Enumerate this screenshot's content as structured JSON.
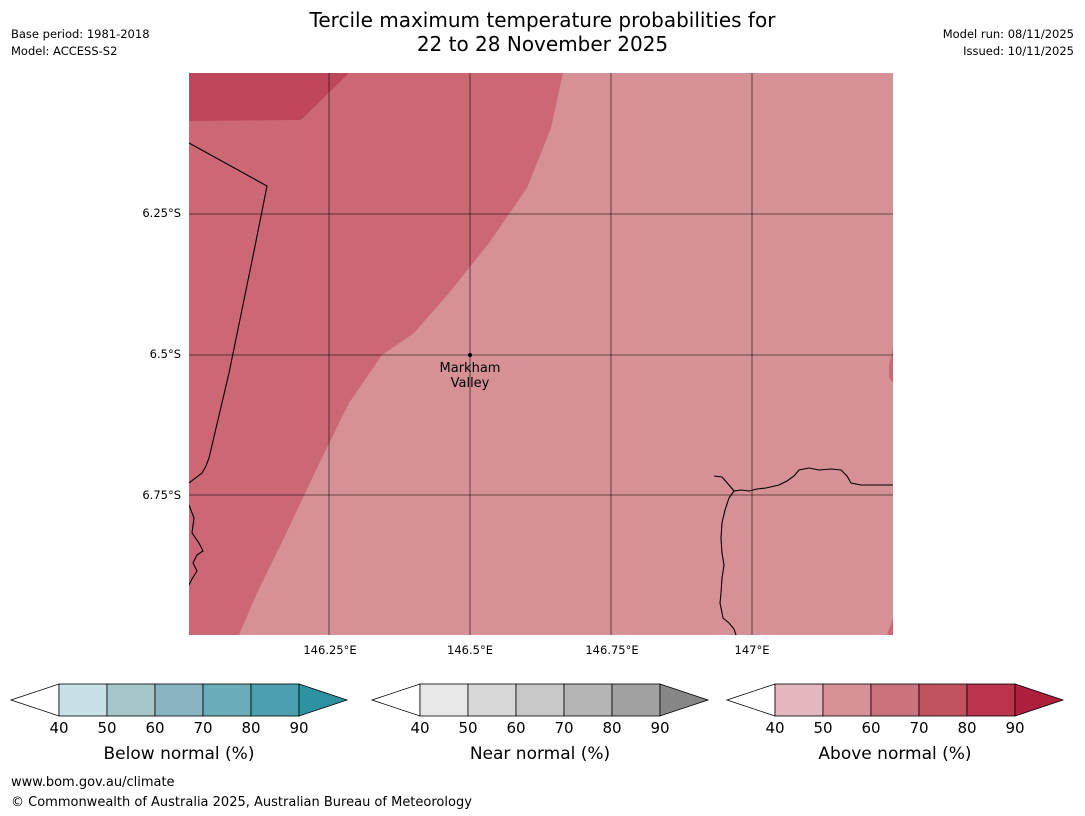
{
  "header": {
    "title_line1": "Tercile maximum temperature probabilities for",
    "title_line2": "22 to 28 November 2025",
    "base_period": "Base period: 1981-2018",
    "model": "Model: ACCESS-S2",
    "model_run": "Model run: 08/11/2025",
    "issued": "Issued: 10/11/2025"
  },
  "map": {
    "lat_labels": [
      "6.25°S",
      "6.5°S",
      "6.75°S"
    ],
    "lon_labels": [
      "146.25°E",
      "146.5°E",
      "146.75°E",
      "147°E"
    ],
    "place_name_line1": "Markham",
    "place_name_line2": "Valley",
    "fill_colors": {
      "above_60_70": "#cb6873",
      "above_50_60": "#d69197",
      "above_80_90": "#c0465a"
    }
  },
  "legends": [
    {
      "name": "Below normal (%)",
      "ticks": [
        "40",
        "50",
        "60",
        "70",
        "80",
        "90"
      ],
      "colors": [
        "#ffffff",
        "#c8e1e6",
        "#a7c6cc",
        "#89b5c1",
        "#6aacb9",
        "#4aa0af",
        "#2e92a2"
      ]
    },
    {
      "name": "Near normal (%)",
      "ticks": [
        "40",
        "50",
        "60",
        "70",
        "80",
        "90"
      ],
      "colors": [
        "#ffffff",
        "#e8e8e8",
        "#d8d8d8",
        "#c8c8c8",
        "#b4b4b4",
        "#a0a0a0",
        "#868686"
      ]
    },
    {
      "name": "Above normal (%)",
      "ticks": [
        "40",
        "50",
        "60",
        "70",
        "80",
        "90"
      ],
      "colors": [
        "#ffffff",
        "#e3b7bd",
        "#d69197",
        "#cb727b",
        "#c1535f",
        "#bc344b",
        "#ad1f3d"
      ]
    }
  ],
  "footer": {
    "website": "www.bom.gov.au/climate",
    "copyright": "© Commonwealth of Australia 2025, Australian Bureau of Meteorology"
  }
}
